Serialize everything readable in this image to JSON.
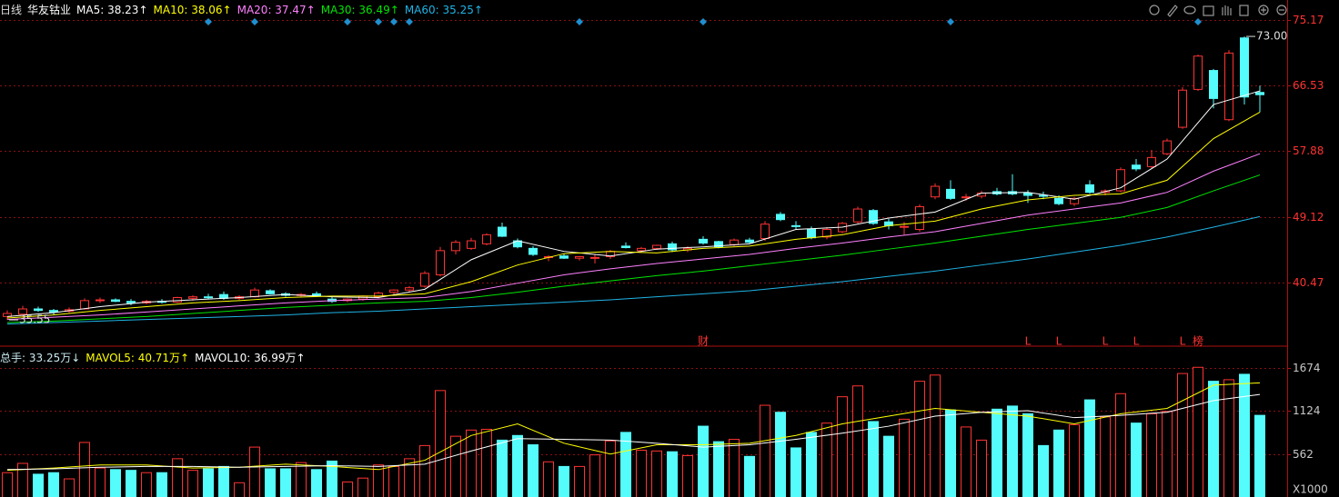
{
  "chart_data": {
    "type": "candlestick",
    "period": "日线",
    "title": "华友钴业",
    "ylim": [
      32.2,
      76.85
    ],
    "yticks": [
      40.47,
      49.12,
      57.88,
      66.53,
      75.17
    ],
    "grid": true,
    "up_color": "#ff3232",
    "down_color": "#54fcfc",
    "open": [
      36.0,
      36.3,
      37.0,
      36.8,
      36.7,
      37.0,
      38.1,
      38.2,
      38.0,
      37.8,
      38.0,
      37.9,
      38.4,
      38.6,
      38.9,
      38.4,
      38.6,
      39.4,
      39.0,
      38.8,
      39.0,
      38.3,
      38.1,
      38.3,
      38.6,
      39.2,
      39.5,
      40.0,
      41.5,
      44.7,
      45.0,
      45.6,
      47.8,
      46.0,
      45.0,
      43.8,
      44.0,
      43.7,
      43.8,
      43.9,
      45.3,
      44.7,
      45.0,
      45.6,
      44.8,
      46.2,
      45.9,
      45.5,
      46.1,
      46.3,
      49.5,
      48.0,
      47.5,
      46.5,
      47.2,
      48.5,
      50.0,
      48.5,
      47.8,
      47.5,
      51.8,
      52.8,
      51.8,
      51.9,
      52.5,
      52.5,
      52.3,
      52.0,
      51.6,
      50.9,
      53.4,
      52.4,
      52.6,
      56.0,
      55.8,
      57.5,
      61.0,
      66.0,
      68.5,
      62.0,
      72.8,
      65.6
    ],
    "high": [
      36.8,
      37.4,
      37.3,
      37.0,
      37.2,
      38.4,
      38.5,
      38.4,
      38.3,
      38.2,
      38.3,
      38.6,
      38.8,
      39.0,
      39.3,
      38.8,
      39.8,
      39.6,
      39.2,
      39.1,
      39.3,
      38.6,
      38.4,
      38.8,
      39.3,
      39.6,
      40.0,
      42.0,
      45.2,
      46.1,
      46.4,
      47.0,
      48.4,
      46.3,
      45.3,
      44.1,
      44.3,
      44.0,
      44.2,
      44.8,
      45.8,
      45.2,
      45.5,
      45.9,
      45.3,
      46.6,
      46.0,
      46.3,
      46.4,
      48.6,
      49.8,
      48.6,
      47.9,
      47.8,
      48.5,
      50.5,
      50.2,
      48.9,
      48.5,
      50.8,
      53.6,
      54.0,
      52.2,
      52.6,
      53.0,
      54.8,
      52.7,
      52.5,
      52.0,
      51.8,
      54.0,
      52.8,
      55.7,
      56.8,
      58.0,
      59.5,
      66.3,
      70.6,
      68.7,
      71.2,
      73.0,
      66.5
    ],
    "low": [
      35.55,
      36.0,
      36.6,
      36.2,
      36.5,
      36.9,
      37.8,
      37.9,
      37.5,
      37.6,
      37.7,
      37.8,
      38.1,
      38.3,
      38.2,
      38.2,
      38.5,
      38.9,
      38.6,
      38.5,
      38.7,
      37.8,
      37.9,
      38.1,
      38.4,
      38.9,
      39.2,
      39.8,
      41.3,
      44.2,
      44.8,
      45.4,
      46.5,
      45.0,
      44.0,
      43.3,
      43.6,
      43.4,
      43.0,
      43.6,
      45.0,
      44.4,
      44.8,
      44.5,
      44.5,
      45.5,
      45.0,
      45.3,
      45.6,
      46.0,
      48.6,
      47.5,
      46.2,
      46.2,
      47.0,
      48.3,
      48.1,
      47.5,
      46.8,
      47.2,
      51.5,
      51.4,
      51.3,
      51.6,
      52.0,
      52.0,
      51.0,
      51.5,
      50.7,
      50.6,
      52.2,
      52.0,
      52.4,
      55.2,
      55.6,
      57.3,
      60.8,
      65.8,
      63.5,
      61.8,
      64.0,
      63.0
    ],
    "close": [
      36.4,
      37.0,
      36.8,
      36.6,
      36.9,
      38.1,
      38.2,
      38.0,
      37.8,
      38.0,
      37.9,
      38.5,
      38.6,
      38.5,
      38.4,
      38.6,
      39.5,
      39.0,
      38.8,
      38.9,
      38.7,
      38.0,
      38.3,
      38.7,
      39.1,
      39.5,
      39.8,
      41.7,
      44.7,
      45.8,
      46.0,
      46.8,
      46.6,
      45.2,
      44.2,
      43.9,
      43.7,
      43.9,
      43.8,
      44.6,
      45.1,
      45.0,
      45.4,
      44.8,
      45.0,
      45.7,
      45.2,
      46.1,
      45.8,
      48.2,
      48.8,
      47.9,
      46.4,
      47.5,
      48.3,
      50.2,
      48.3,
      48.0,
      47.9,
      50.5,
      53.2,
      51.6,
      51.8,
      52.3,
      52.2,
      52.2,
      52.0,
      51.9,
      50.9,
      51.6,
      52.4,
      52.6,
      55.4,
      55.5,
      57.0,
      59.2,
      65.9,
      70.4,
      64.8,
      70.8,
      65.0,
      65.3
    ],
    "high_label": {
      "value": 73.0,
      "label": "73.00"
    },
    "low_label": {
      "value": 35.55,
      "label": "35.55"
    },
    "event_labels": [
      null,
      null,
      null,
      null,
      null,
      null,
      null,
      null,
      null,
      null,
      null,
      null,
      null,
      null,
      null,
      null,
      null,
      null,
      null,
      null,
      null,
      null,
      null,
      null,
      null,
      null,
      null,
      null,
      null,
      null,
      null,
      null,
      null,
      null,
      null,
      null,
      null,
      null,
      null,
      null,
      null,
      null,
      null,
      null,
      null,
      "财",
      null,
      null,
      null,
      null,
      null,
      null,
      null,
      null,
      null,
      null,
      null,
      null,
      null,
      null,
      null,
      null,
      null,
      null,
      null,
      null,
      "L",
      null,
      "L",
      null,
      null,
      "L",
      null,
      "L",
      null,
      null,
      "L",
      "榜",
      null,
      null,
      null,
      null
    ],
    "ma_x": [
      0,
      3,
      6,
      9,
      12,
      15,
      18,
      21,
      24,
      27,
      30,
      33,
      36,
      39,
      42,
      45,
      48,
      51,
      54,
      57,
      60,
      63,
      66,
      69,
      72,
      75,
      78,
      81
    ],
    "series": [
      {
        "name": "MA5: 38.23↑",
        "color": "#ffffff",
        "values": [
          36.0,
          36.5,
          37.3,
          37.9,
          38.2,
          38.5,
          38.9,
          38.6,
          38.5,
          39.6,
          43.5,
          46.0,
          44.6,
          44.0,
          44.9,
          45.2,
          45.6,
          47.5,
          47.8,
          49.0,
          49.8,
          52.3,
          52.4,
          51.5,
          53.0,
          56.8,
          64.0,
          65.8
        ]
      },
      {
        "name": "MA10: 38.06↑",
        "color": "#ffff00",
        "values": [
          35.8,
          36.2,
          36.8,
          37.3,
          37.8,
          38.1,
          38.5,
          38.7,
          38.7,
          39.0,
          40.6,
          42.8,
          44.3,
          44.6,
          44.4,
          45.0,
          45.3,
          46.2,
          46.8,
          48.0,
          48.6,
          50.2,
          51.4,
          52.0,
          52.2,
          54.0,
          59.5,
          63.0
        ]
      },
      {
        "name": "MA20: 37.47↑",
        "color": "#ff80ff",
        "values": [
          35.6,
          35.9,
          36.2,
          36.6,
          37.0,
          37.4,
          37.8,
          38.1,
          38.3,
          38.5,
          39.3,
          40.4,
          41.5,
          42.3,
          43.0,
          43.6,
          44.2,
          45.0,
          45.7,
          46.5,
          47.2,
          48.3,
          49.4,
          50.2,
          51.0,
          52.4,
          55.2,
          57.5
        ]
      },
      {
        "name": "MA30: 36.49↑",
        "color": "#00e600",
        "values": [
          35.2,
          35.4,
          35.7,
          36.0,
          36.4,
          36.8,
          37.2,
          37.5,
          37.8,
          38.0,
          38.5,
          39.2,
          40.0,
          40.7,
          41.4,
          42.0,
          42.7,
          43.4,
          44.1,
          44.9,
          45.7,
          46.6,
          47.5,
          48.3,
          49.1,
          50.4,
          52.6,
          54.7
        ]
      },
      {
        "name": "MA60: 35.25↑",
        "color": "#1fb4e6",
        "values": [
          35.0,
          35.2,
          35.4,
          35.6,
          35.8,
          36.0,
          36.2,
          36.5,
          36.7,
          37.0,
          37.3,
          37.6,
          37.9,
          38.2,
          38.6,
          39.0,
          39.4,
          40.0,
          40.6,
          41.3,
          42.0,
          42.8,
          43.6,
          44.5,
          45.4,
          46.5,
          47.8,
          49.2
        ]
      }
    ],
    "volume": {
      "title": "总手: 33.25万↓",
      "title_color": "#c8e8f0",
      "unit_label": "X1000",
      "ylim": [
        0,
        1906
      ],
      "yticks": [
        562,
        1124,
        1674
      ],
      "values": [
        320,
        440,
        300,
        320,
        240,
        710,
        380,
        360,
        350,
        320,
        320,
        500,
        350,
        370,
        400,
        190,
        650,
        370,
        370,
        450,
        360,
        470,
        200,
        250,
        420,
        400,
        500,
        670,
        1380,
        790,
        870,
        880,
        740,
        800,
        680,
        460,
        400,
        400,
        550,
        730,
        840,
        610,
        600,
        590,
        540,
        920,
        720,
        750,
        530,
        1190,
        1100,
        640,
        840,
        960,
        1300,
        1440,
        980,
        790,
        1010,
        1500,
        1580,
        1130,
        910,
        740,
        1140,
        1180,
        1080,
        670,
        870,
        940,
        1260,
        1040,
        1340,
        960,
        1080,
        1110,
        1600,
        1680,
        1500,
        1520,
        1590,
        1060
      ],
      "series": [
        {
          "name": "MAVOL5: 40.71万↑",
          "color": "#ffff00",
          "values": [
            350,
            380,
            420,
            420,
            380,
            390,
            430,
            400,
            360,
            480,
            800,
            950,
            700,
            560,
            680,
            680,
            700,
            800,
            950,
            1050,
            1150,
            1100,
            1050,
            950,
            1080,
            1150,
            1450,
            1480
          ]
        },
        {
          "name": "MAVOL10: 36.99万↑",
          "color": "#ffffff",
          "values": [
            360,
            370,
            390,
            400,
            400,
            390,
            400,
            410,
            400,
            430,
            600,
            760,
            750,
            740,
            700,
            650,
            680,
            750,
            830,
            920,
            1050,
            1100,
            1120,
            1030,
            1060,
            1100,
            1250,
            1330
          ]
        }
      ]
    }
  }
}
